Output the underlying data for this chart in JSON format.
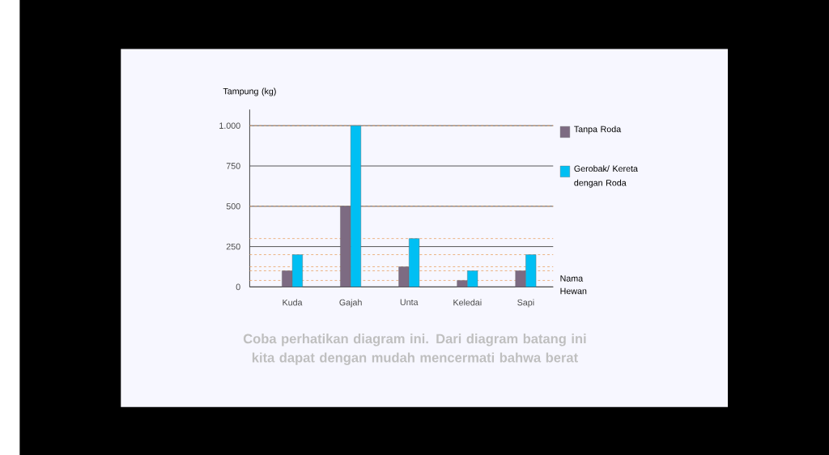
{
  "chart_data": {
    "type": "bar",
    "categories": [
      "Kuda",
      "Gajah",
      "Unta",
      "Keledai",
      "Sapi"
    ],
    "series": [
      {
        "name": "Tanpa Roda",
        "color": "#7d6b82",
        "values": [
          100,
          500,
          125,
          40,
          100
        ]
      },
      {
        "name": "Gerobak/ Kereta dengan Roda",
        "color": "#00bff3",
        "values": [
          200,
          1000,
          300,
          100,
          200
        ]
      }
    ],
    "ylabel": "Tampung (kg)",
    "xlabel": "Nama Hewan",
    "ylim": [
      0,
      1100
    ],
    "yticks": [
      0,
      250,
      500,
      750,
      {
        "value": 1000,
        "label": "1.000"
      }
    ],
    "grid": "y",
    "legend": "right",
    "ref_lines": [
      {
        "axis": "y",
        "value": 1000,
        "color": "#e8a060",
        "line_style": "dashed"
      },
      {
        "axis": "y",
        "value": 500,
        "color": "#e8a060",
        "line_style": "dashed"
      },
      {
        "axis": "y",
        "value": 300,
        "color": "#e8a060",
        "line_style": "dashed"
      },
      {
        "axis": "y",
        "value": 200,
        "color": "#e8a060",
        "line_style": "dashed"
      },
      {
        "axis": "y",
        "value": 125,
        "color": "#e8a060",
        "line_style": "dashed"
      },
      {
        "axis": "y",
        "value": 100,
        "color": "#e8a060",
        "line_style": "dashed"
      },
      {
        "axis": "y",
        "value": 40,
        "color": "#e8a060",
        "line_style": "dashed"
      }
    ],
    "annotations": [
      "Coba perhatikan diagram ini. Dari diagram batang ini kita dapat dengan mudah mencermati bahwa berat"
    ]
  }
}
